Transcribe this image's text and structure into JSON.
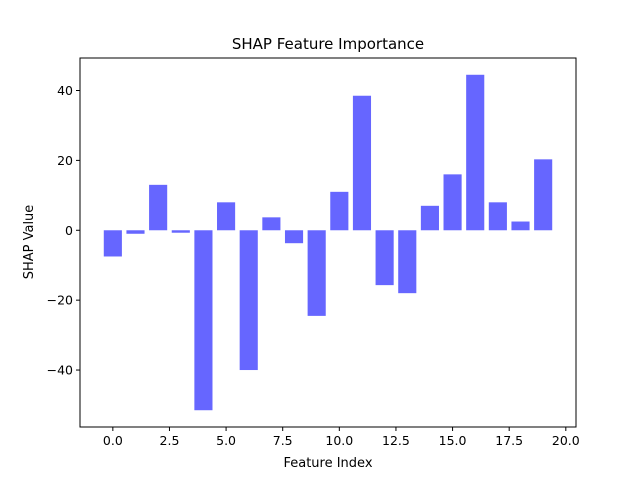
{
  "chart_data": {
    "type": "bar",
    "title": "SHAP Feature Importance",
    "xlabel": "Feature Index",
    "ylabel": "SHAP Value",
    "x": [
      0,
      1,
      2,
      3,
      4,
      5,
      6,
      7,
      8,
      9,
      10,
      11,
      12,
      13,
      14,
      15,
      16,
      17,
      18,
      19
    ],
    "values": [
      -7.5,
      -1.0,
      13.0,
      -0.7,
      -51.5,
      8.0,
      -40.0,
      3.7,
      -3.7,
      -24.5,
      11.0,
      38.5,
      -15.7,
      -18.0,
      7.0,
      16.0,
      44.5,
      8.0,
      2.5,
      20.3
    ],
    "xlim": [
      -1.45,
      20.45
    ],
    "ylim": [
      -56.3,
      49.3
    ],
    "xticks": [
      0.0,
      2.5,
      5.0,
      7.5,
      10.0,
      12.5,
      15.0,
      17.5,
      20.0
    ],
    "xtick_labels": [
      "0.0",
      "2.5",
      "5.0",
      "7.5",
      "10.0",
      "12.5",
      "15.0",
      "17.5",
      "20.0"
    ],
    "yticks": [
      -40,
      -20,
      0,
      20,
      40
    ],
    "ytick_labels": [
      "−40",
      "−20",
      "0",
      "20",
      "40"
    ],
    "bar_color": "#6666ff",
    "grid": false,
    "legend": false
  }
}
